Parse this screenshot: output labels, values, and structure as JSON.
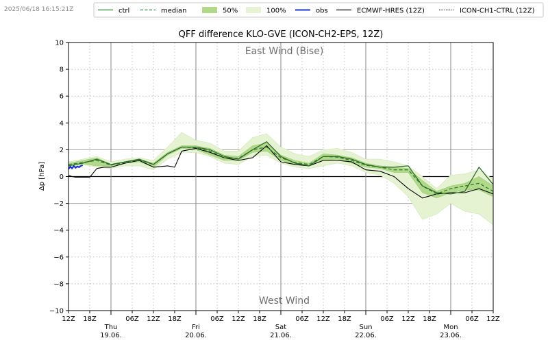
{
  "timestamp": "2025/06/18 16:15:21Z",
  "chart_data": {
    "type": "line",
    "title": "QFF difference KLO-GVE (ICON-CH2-EPS, 12Z)",
    "xlabel": "",
    "ylabel": "Δp [hPa]",
    "xlim_hours": [
      0,
      120
    ],
    "ylim": [
      -10,
      10
    ],
    "yticks": [
      -10,
      -8,
      -6,
      -4,
      -2,
      0,
      2,
      4,
      6,
      8,
      10
    ],
    "annotations": {
      "top": "East Wind (Bise)",
      "bottom": "West Wind"
    },
    "x_minor_labels": [
      {
        "h": 0,
        "label": "12Z"
      },
      {
        "h": 6,
        "label": "18Z"
      },
      {
        "h": 18,
        "label": "06Z"
      },
      {
        "h": 24,
        "label": "12Z"
      },
      {
        "h": 30,
        "label": "18Z"
      },
      {
        "h": 42,
        "label": "06Z"
      },
      {
        "h": 48,
        "label": "12Z"
      },
      {
        "h": 54,
        "label": "18Z"
      },
      {
        "h": 66,
        "label": "06Z"
      },
      {
        "h": 72,
        "label": "12Z"
      },
      {
        "h": 78,
        "label": "18Z"
      },
      {
        "h": 90,
        "label": "06Z"
      },
      {
        "h": 96,
        "label": "12Z"
      },
      {
        "h": 102,
        "label": "18Z"
      },
      {
        "h": 114,
        "label": "06Z"
      },
      {
        "h": 120,
        "label": "12Z"
      }
    ],
    "x_day_labels": [
      {
        "h": 12,
        "day": "Thu",
        "date": "19.06."
      },
      {
        "h": 36,
        "day": "Fri",
        "date": "20.06."
      },
      {
        "h": 60,
        "day": "Sat",
        "date": "21.06."
      },
      {
        "h": 84,
        "day": "Sun",
        "date": "22.06."
      },
      {
        "h": 108,
        "day": "Mon",
        "date": "23.06."
      }
    ],
    "legend": {
      "placement": "top",
      "entries": [
        {
          "key": "ctrl",
          "label": "ctrl",
          "color": "#2e7d32",
          "style": "solid"
        },
        {
          "key": "median",
          "label": "median",
          "color": "#2e7d32",
          "style": "dashed"
        },
        {
          "key": "p50",
          "label": "50%",
          "color": "#b2d98a",
          "style": "fill"
        },
        {
          "key": "p100",
          "label": "100%",
          "color": "#e6f3d3",
          "style": "fill"
        },
        {
          "key": "obs",
          "label": "obs",
          "color": "#1a33cc",
          "style": "solid"
        },
        {
          "key": "hres",
          "label": "ECMWF-HRES (12Z)",
          "color": "#000000",
          "style": "solid"
        },
        {
          "key": "ch1",
          "label": "ICON-CH1-CTRL (12Z)",
          "color": "#000000",
          "style": "dotted"
        }
      ]
    },
    "series": [
      {
        "name": "100% range",
        "type": "band",
        "x": [
          0,
          4,
          8,
          12,
          16,
          20,
          24,
          28,
          32,
          36,
          40,
          44,
          48,
          52,
          56,
          60,
          64,
          68,
          72,
          76,
          80,
          84,
          88,
          92,
          96,
          100,
          104,
          108,
          112,
          116,
          120
        ],
        "lower": [
          0.6,
          0.9,
          0.7,
          0.6,
          0.8,
          0.8,
          0.5,
          1.3,
          1.8,
          1.8,
          1.5,
          1.0,
          0.9,
          1.5,
          1.6,
          1.0,
          0.7,
          0.6,
          0.8,
          1.0,
          0.8,
          0.3,
          0.1,
          -0.5,
          -1.5,
          -3.2,
          -2.8,
          -2.0,
          -2.6,
          -2.8,
          -3.6
        ],
        "upper": [
          1.1,
          1.3,
          1.5,
          1.1,
          1.3,
          1.4,
          1.2,
          2.2,
          3.3,
          2.7,
          2.5,
          1.9,
          1.9,
          2.9,
          3.2,
          2.2,
          1.7,
          1.5,
          2.0,
          2.1,
          1.8,
          1.3,
          1.3,
          1.1,
          0.8,
          0.0,
          -0.9,
          0.1,
          0.2,
          0.5,
          -0.2
        ]
      },
      {
        "name": "50% range",
        "type": "band",
        "x": [
          0,
          4,
          8,
          12,
          16,
          20,
          24,
          28,
          32,
          36,
          40,
          44,
          48,
          52,
          56,
          60,
          64,
          68,
          72,
          76,
          80,
          84,
          88,
          92,
          96,
          100,
          104,
          108,
          112,
          116,
          120
        ],
        "lower": [
          0.8,
          0.95,
          0.8,
          0.8,
          1.0,
          1.1,
          0.7,
          1.6,
          2.1,
          2.0,
          1.6,
          1.2,
          1.2,
          1.8,
          1.9,
          1.2,
          0.9,
          0.8,
          1.2,
          1.3,
          1.0,
          0.7,
          0.6,
          0.3,
          0.3,
          -1.2,
          -1.6,
          -1.2,
          -1.0,
          -1.0,
          -1.5
        ],
        "upper": [
          1.0,
          1.2,
          1.4,
          0.9,
          1.1,
          1.3,
          1.0,
          1.8,
          2.3,
          2.3,
          2.1,
          1.6,
          1.5,
          2.3,
          2.5,
          1.6,
          1.2,
          1.0,
          1.7,
          1.6,
          1.4,
          1.0,
          0.8,
          0.7,
          0.6,
          -0.3,
          -1.1,
          -0.7,
          -0.5,
          0.0,
          -0.7
        ]
      },
      {
        "name": "ctrl",
        "type": "line",
        "x": [
          0,
          4,
          8,
          12,
          16,
          20,
          24,
          28,
          32,
          36,
          40,
          44,
          48,
          52,
          56,
          60,
          64,
          68,
          72,
          76,
          80,
          84,
          88,
          92,
          96,
          100,
          104,
          108,
          112,
          116,
          120
        ],
        "y": [
          0.8,
          1.0,
          1.3,
          0.9,
          1.1,
          1.3,
          0.9,
          1.7,
          2.2,
          2.2,
          2.0,
          1.5,
          1.3,
          2.0,
          2.6,
          1.5,
          1.0,
          0.8,
          1.5,
          1.5,
          1.3,
          0.9,
          0.7,
          0.7,
          0.8,
          -0.7,
          -1.2,
          -1.3,
          -1.1,
          0.7,
          -0.6
        ]
      },
      {
        "name": "median",
        "type": "line",
        "x": [
          0,
          4,
          8,
          12,
          16,
          20,
          24,
          28,
          32,
          36,
          40,
          44,
          48,
          52,
          56,
          60,
          64,
          68,
          72,
          76,
          80,
          84,
          88,
          92,
          96,
          100,
          104,
          108,
          112,
          116,
          120
        ],
        "y": [
          0.9,
          1.05,
          1.2,
          0.85,
          1.05,
          1.25,
          0.9,
          1.7,
          2.2,
          2.15,
          1.9,
          1.4,
          1.35,
          2.0,
          2.2,
          1.4,
          1.05,
          0.9,
          1.5,
          1.45,
          1.2,
          0.85,
          0.7,
          0.5,
          0.5,
          -0.7,
          -1.3,
          -0.9,
          -0.7,
          -0.5,
          -1.1
        ]
      },
      {
        "name": "ECMWF-HRES (12Z)",
        "type": "line",
        "x": [
          0,
          1,
          2,
          4,
          6,
          8,
          10,
          12,
          16,
          20,
          24,
          28,
          30,
          32,
          36,
          40,
          44,
          48,
          52,
          56,
          60,
          64,
          68,
          72,
          76,
          80,
          84,
          88,
          92,
          96,
          100,
          104,
          108,
          112,
          116,
          120
        ],
        "y": [
          0.1,
          0.0,
          -0.05,
          -0.05,
          -0.05,
          0.6,
          0.7,
          0.7,
          1.0,
          1.2,
          0.7,
          0.8,
          0.7,
          1.9,
          2.1,
          1.8,
          1.4,
          1.2,
          1.4,
          2.3,
          1.1,
          0.9,
          0.8,
          1.2,
          1.2,
          1.1,
          0.5,
          0.4,
          0.0,
          -0.9,
          -1.6,
          -1.3,
          -1.2,
          -1.2,
          -0.9,
          -1.3
        ]
      },
      {
        "name": "obs",
        "type": "line",
        "x": [
          0,
          0.5,
          1,
          1.5,
          2,
          2.5,
          3,
          3.5,
          4
        ],
        "y": [
          0.55,
          0.75,
          0.6,
          0.8,
          0.65,
          0.75,
          0.7,
          0.8,
          0.85
        ]
      }
    ]
  }
}
